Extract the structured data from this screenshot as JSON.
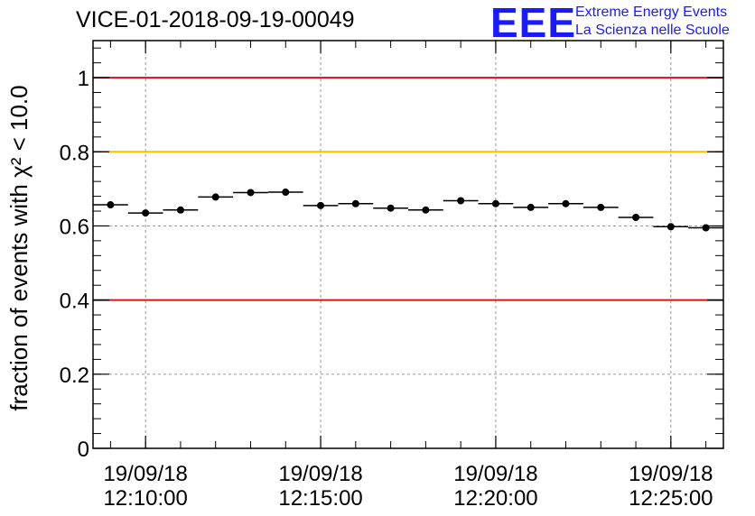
{
  "header": {
    "title": "VICE-01-2018-09-19-00049",
    "logo_mark": "EEE",
    "logo_line1": "Extreme Energy Events",
    "logo_line2": "La Scienza nelle Scuole"
  },
  "chart_data": {
    "type": "scatter",
    "title": "VICE-01-2018-09-19-00049",
    "ylabel": "fraction of events with χ² < 10.0",
    "xlabel": "",
    "ylim": [
      0,
      1.1
    ],
    "xlim_minutes": [
      8.5,
      26.5
    ],
    "grid": true,
    "y_ticks": [
      {
        "value": 0,
        "label": "0"
      },
      {
        "value": 0.2,
        "label": "0.2"
      },
      {
        "value": 0.4,
        "label": "0.4"
      },
      {
        "value": 0.6,
        "label": "0.6"
      },
      {
        "value": 0.8,
        "label": "0.8"
      },
      {
        "value": 1.0,
        "label": "1"
      }
    ],
    "x_ticks": [
      {
        "minutes": 10,
        "date": "19/09/18",
        "time": "12:10:00"
      },
      {
        "minutes": 15,
        "date": "19/09/18",
        "time": "12:15:00"
      },
      {
        "minutes": 20,
        "date": "19/09/18",
        "time": "12:20:00"
      },
      {
        "minutes": 25,
        "date": "19/09/18",
        "time": "12:25:00"
      }
    ],
    "bin_width_minutes": 1,
    "points": [
      {
        "x": 9.0,
        "y": 0.657
      },
      {
        "x": 10.0,
        "y": 0.635
      },
      {
        "x": 11.0,
        "y": 0.643
      },
      {
        "x": 12.0,
        "y": 0.678
      },
      {
        "x": 13.0,
        "y": 0.69
      },
      {
        "x": 14.0,
        "y": 0.691
      },
      {
        "x": 15.0,
        "y": 0.655
      },
      {
        "x": 16.0,
        "y": 0.66
      },
      {
        "x": 17.0,
        "y": 0.648
      },
      {
        "x": 18.0,
        "y": 0.643
      },
      {
        "x": 19.0,
        "y": 0.668
      },
      {
        "x": 20.0,
        "y": 0.66
      },
      {
        "x": 21.0,
        "y": 0.65
      },
      {
        "x": 22.0,
        "y": 0.66
      },
      {
        "x": 23.0,
        "y": 0.65
      },
      {
        "x": 24.0,
        "y": 0.623
      },
      {
        "x": 25.0,
        "y": 0.598
      },
      {
        "x": 26.0,
        "y": 0.595
      }
    ],
    "reference_lines": [
      {
        "y": 1.0,
        "color": "#e01010"
      },
      {
        "y": 0.8,
        "color": "#ffbf00"
      },
      {
        "y": 0.4,
        "color": "#e01010"
      }
    ]
  }
}
